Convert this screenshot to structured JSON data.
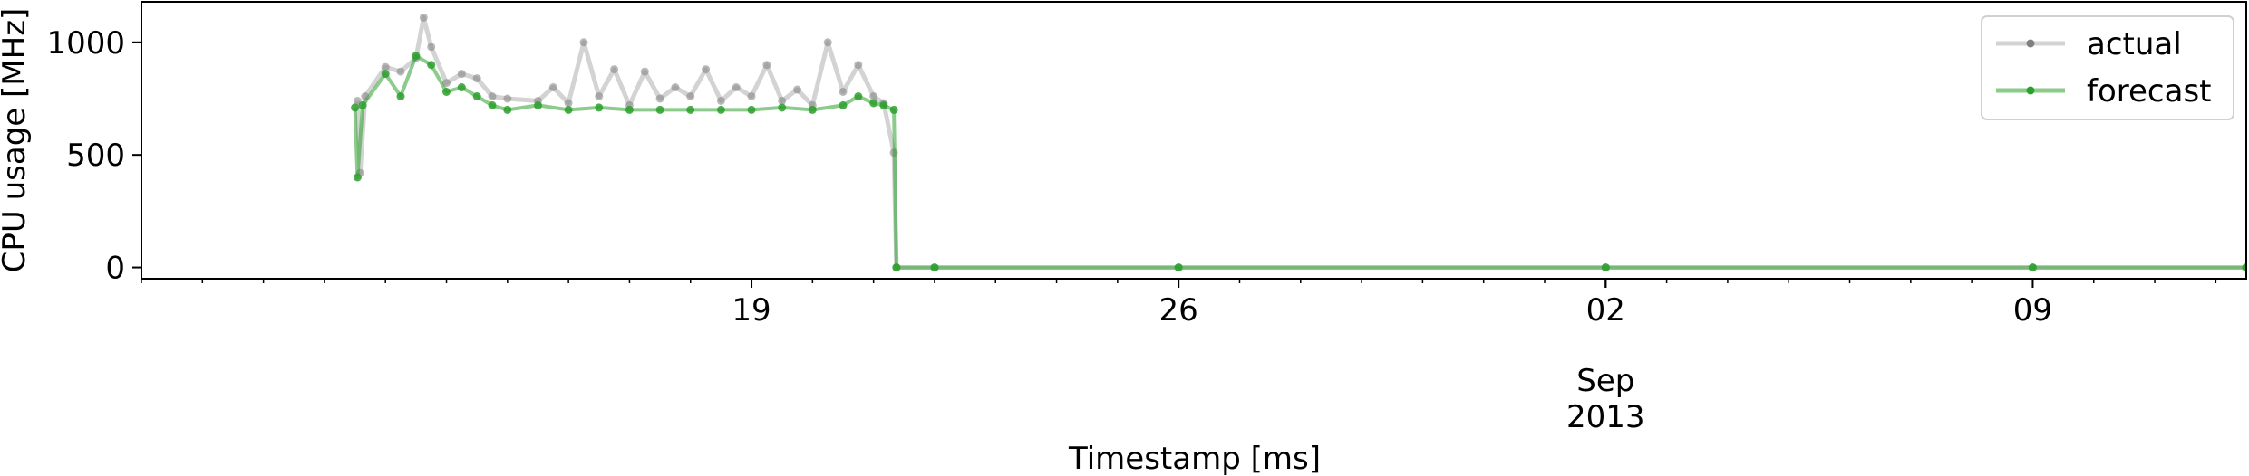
{
  "chart_data": {
    "type": "line",
    "title": "",
    "xlabel": "Timestamp [ms]",
    "ylabel": "CPU usage [MHz]",
    "xlim": [
      "2013-08-09T00:00",
      "2013-09-12T12:00"
    ],
    "ylim": [
      -50,
      1180
    ],
    "yticks": [
      {
        "value": 0,
        "label": "0"
      },
      {
        "value": 500,
        "label": "500"
      },
      {
        "value": 1000,
        "label": "1000"
      }
    ],
    "xticks": [
      {
        "value": "2013-08-19",
        "label": "19"
      },
      {
        "value": "2013-08-26",
        "label": "26"
      },
      {
        "value": "2013-09-02",
        "label": "02"
      },
      {
        "value": "2013-09-09",
        "label": "09"
      }
    ],
    "x_secondary_labels": [
      "Sep",
      "2013"
    ],
    "legend": {
      "position": "upper right",
      "entries": [
        {
          "name": "actual",
          "color": "#808080"
        },
        {
          "name": "forecast",
          "color": "#2ca02c"
        }
      ]
    },
    "series": [
      {
        "name": "actual",
        "color": "#808080",
        "points": [
          [
            "2013-08-12T13:00",
            740
          ],
          [
            "2013-08-12T14:00",
            420
          ],
          [
            "2013-08-12T16:00",
            760
          ],
          [
            "2013-08-13T00:00",
            890
          ],
          [
            "2013-08-13T06:00",
            870
          ],
          [
            "2013-08-13T12:00",
            930
          ],
          [
            "2013-08-13T15:00",
            1110
          ],
          [
            "2013-08-13T18:00",
            980
          ],
          [
            "2013-08-14T00:00",
            820
          ],
          [
            "2013-08-14T06:00",
            860
          ],
          [
            "2013-08-14T12:00",
            840
          ],
          [
            "2013-08-14T18:00",
            760
          ],
          [
            "2013-08-15T00:00",
            750
          ],
          [
            "2013-08-15T12:00",
            740
          ],
          [
            "2013-08-15T18:00",
            800
          ],
          [
            "2013-08-16T00:00",
            730
          ],
          [
            "2013-08-16T06:00",
            1000
          ],
          [
            "2013-08-16T12:00",
            760
          ],
          [
            "2013-08-16T18:00",
            880
          ],
          [
            "2013-08-17T00:00",
            720
          ],
          [
            "2013-08-17T06:00",
            870
          ],
          [
            "2013-08-17T12:00",
            750
          ],
          [
            "2013-08-17T18:00",
            800
          ],
          [
            "2013-08-18T00:00",
            760
          ],
          [
            "2013-08-18T06:00",
            880
          ],
          [
            "2013-08-18T12:00",
            740
          ],
          [
            "2013-08-18T18:00",
            800
          ],
          [
            "2013-08-19T00:00",
            760
          ],
          [
            "2013-08-19T06:00",
            900
          ],
          [
            "2013-08-19T12:00",
            740
          ],
          [
            "2013-08-19T18:00",
            790
          ],
          [
            "2013-08-20T00:00",
            720
          ],
          [
            "2013-08-20T06:00",
            1000
          ],
          [
            "2013-08-20T12:00",
            780
          ],
          [
            "2013-08-20T18:00",
            900
          ],
          [
            "2013-08-21T00:00",
            760
          ],
          [
            "2013-08-21T04:00",
            730
          ],
          [
            "2013-08-21T08:00",
            510
          ],
          [
            "2013-08-21T09:00",
            0
          ],
          [
            "2013-08-22T00:00",
            0
          ],
          [
            "2013-08-26T00:00",
            0
          ],
          [
            "2013-09-02T00:00",
            0
          ],
          [
            "2013-09-09T00:00",
            0
          ],
          [
            "2013-09-12T12:00",
            0
          ]
        ]
      },
      {
        "name": "forecast",
        "color": "#2ca02c",
        "points": [
          [
            "2013-08-12T12:00",
            710
          ],
          [
            "2013-08-12T13:00",
            400
          ],
          [
            "2013-08-12T15:00",
            720
          ],
          [
            "2013-08-13T00:00",
            860
          ],
          [
            "2013-08-13T06:00",
            760
          ],
          [
            "2013-08-13T12:00",
            940
          ],
          [
            "2013-08-13T18:00",
            900
          ],
          [
            "2013-08-14T00:00",
            780
          ],
          [
            "2013-08-14T06:00",
            800
          ],
          [
            "2013-08-14T12:00",
            760
          ],
          [
            "2013-08-14T18:00",
            720
          ],
          [
            "2013-08-15T00:00",
            700
          ],
          [
            "2013-08-15T12:00",
            720
          ],
          [
            "2013-08-16T00:00",
            700
          ],
          [
            "2013-08-16T12:00",
            710
          ],
          [
            "2013-08-17T00:00",
            700
          ],
          [
            "2013-08-17T12:00",
            700
          ],
          [
            "2013-08-18T00:00",
            700
          ],
          [
            "2013-08-18T12:00",
            700
          ],
          [
            "2013-08-19T00:00",
            700
          ],
          [
            "2013-08-19T12:00",
            710
          ],
          [
            "2013-08-20T00:00",
            700
          ],
          [
            "2013-08-20T12:00",
            720
          ],
          [
            "2013-08-20T18:00",
            760
          ],
          [
            "2013-08-21T00:00",
            730
          ],
          [
            "2013-08-21T04:00",
            720
          ],
          [
            "2013-08-21T08:00",
            700
          ],
          [
            "2013-08-21T09:00",
            0
          ],
          [
            "2013-08-22T00:00",
            0
          ],
          [
            "2013-08-26T00:00",
            0
          ],
          [
            "2013-09-02T00:00",
            0
          ],
          [
            "2013-09-09T00:00",
            0
          ],
          [
            "2013-09-12T12:00",
            0
          ]
        ]
      }
    ]
  }
}
